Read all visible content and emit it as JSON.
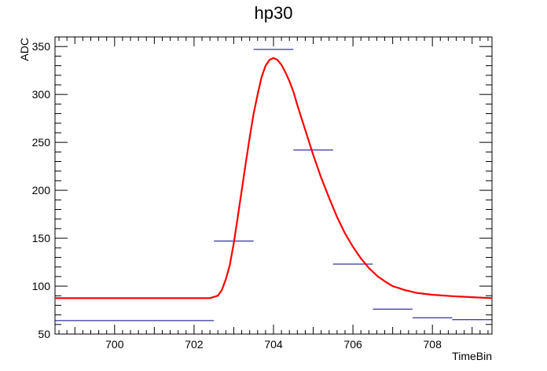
{
  "chart_data": {
    "type": "line",
    "title": "hp30",
    "xlabel": "TimeBin",
    "ylabel": "ADC",
    "xlim": [
      698.5,
      709.5
    ],
    "ylim": [
      50,
      360
    ],
    "x_ticks": [
      700,
      702,
      704,
      706,
      708
    ],
    "y_ticks": [
      50,
      100,
      150,
      200,
      250,
      300,
      350
    ],
    "grid": false,
    "colors": {
      "histogram": "#00007f",
      "fit": "#ff0000",
      "frame": "#000000"
    },
    "series": [
      {
        "type": "histogram",
        "bins": [
          {
            "x0": 698.5,
            "x1": 699.5,
            "y": 64
          },
          {
            "x0": 699.5,
            "x1": 700.5,
            "y": 64
          },
          {
            "x0": 700.5,
            "x1": 701.5,
            "y": 64
          },
          {
            "x0": 701.5,
            "x1": 702.5,
            "y": 64
          },
          {
            "x0": 702.5,
            "x1": 703.5,
            "y": 147
          },
          {
            "x0": 703.5,
            "x1": 704.5,
            "y": 347
          },
          {
            "x0": 704.5,
            "x1": 705.5,
            "y": 242
          },
          {
            "x0": 705.5,
            "x1": 706.5,
            "y": 123
          },
          {
            "x0": 706.5,
            "x1": 707.5,
            "y": 76
          },
          {
            "x0": 707.5,
            "x1": 708.5,
            "y": 67
          },
          {
            "x0": 708.5,
            "x1": 709.5,
            "y": 65
          }
        ]
      },
      {
        "type": "fit",
        "points": [
          {
            "x": 698.5,
            "y": 87.5
          },
          {
            "x": 699.0,
            "y": 87.5
          },
          {
            "x": 700.0,
            "y": 87.5
          },
          {
            "x": 701.0,
            "y": 87.5
          },
          {
            "x": 702.0,
            "y": 87.5
          },
          {
            "x": 702.4,
            "y": 87.5
          },
          {
            "x": 702.6,
            "y": 90
          },
          {
            "x": 702.7,
            "y": 96
          },
          {
            "x": 702.8,
            "y": 107
          },
          {
            "x": 702.9,
            "y": 122
          },
          {
            "x": 703.0,
            "y": 145
          },
          {
            "x": 703.1,
            "y": 172
          },
          {
            "x": 703.2,
            "y": 200
          },
          {
            "x": 703.3,
            "y": 228
          },
          {
            "x": 703.4,
            "y": 255
          },
          {
            "x": 703.5,
            "y": 280
          },
          {
            "x": 703.6,
            "y": 300
          },
          {
            "x": 703.7,
            "y": 318
          },
          {
            "x": 703.8,
            "y": 330
          },
          {
            "x": 703.9,
            "y": 336
          },
          {
            "x": 704.0,
            "y": 338
          },
          {
            "x": 704.1,
            "y": 336
          },
          {
            "x": 704.2,
            "y": 331
          },
          {
            "x": 704.3,
            "y": 323
          },
          {
            "x": 704.4,
            "y": 314
          },
          {
            "x": 704.5,
            "y": 303
          },
          {
            "x": 704.6,
            "y": 289
          },
          {
            "x": 704.8,
            "y": 263
          },
          {
            "x": 705.0,
            "y": 237
          },
          {
            "x": 705.2,
            "y": 213
          },
          {
            "x": 705.4,
            "y": 192
          },
          {
            "x": 705.6,
            "y": 172
          },
          {
            "x": 705.8,
            "y": 155
          },
          {
            "x": 706.0,
            "y": 141
          },
          {
            "x": 706.2,
            "y": 129
          },
          {
            "x": 706.4,
            "y": 119
          },
          {
            "x": 706.6,
            "y": 111
          },
          {
            "x": 706.8,
            "y": 105
          },
          {
            "x": 707.0,
            "y": 100
          },
          {
            "x": 707.3,
            "y": 96
          },
          {
            "x": 707.6,
            "y": 93
          },
          {
            "x": 708.0,
            "y": 91
          },
          {
            "x": 708.5,
            "y": 89.5
          },
          {
            "x": 709.0,
            "y": 88.5
          },
          {
            "x": 709.5,
            "y": 87.5
          }
        ]
      }
    ]
  }
}
